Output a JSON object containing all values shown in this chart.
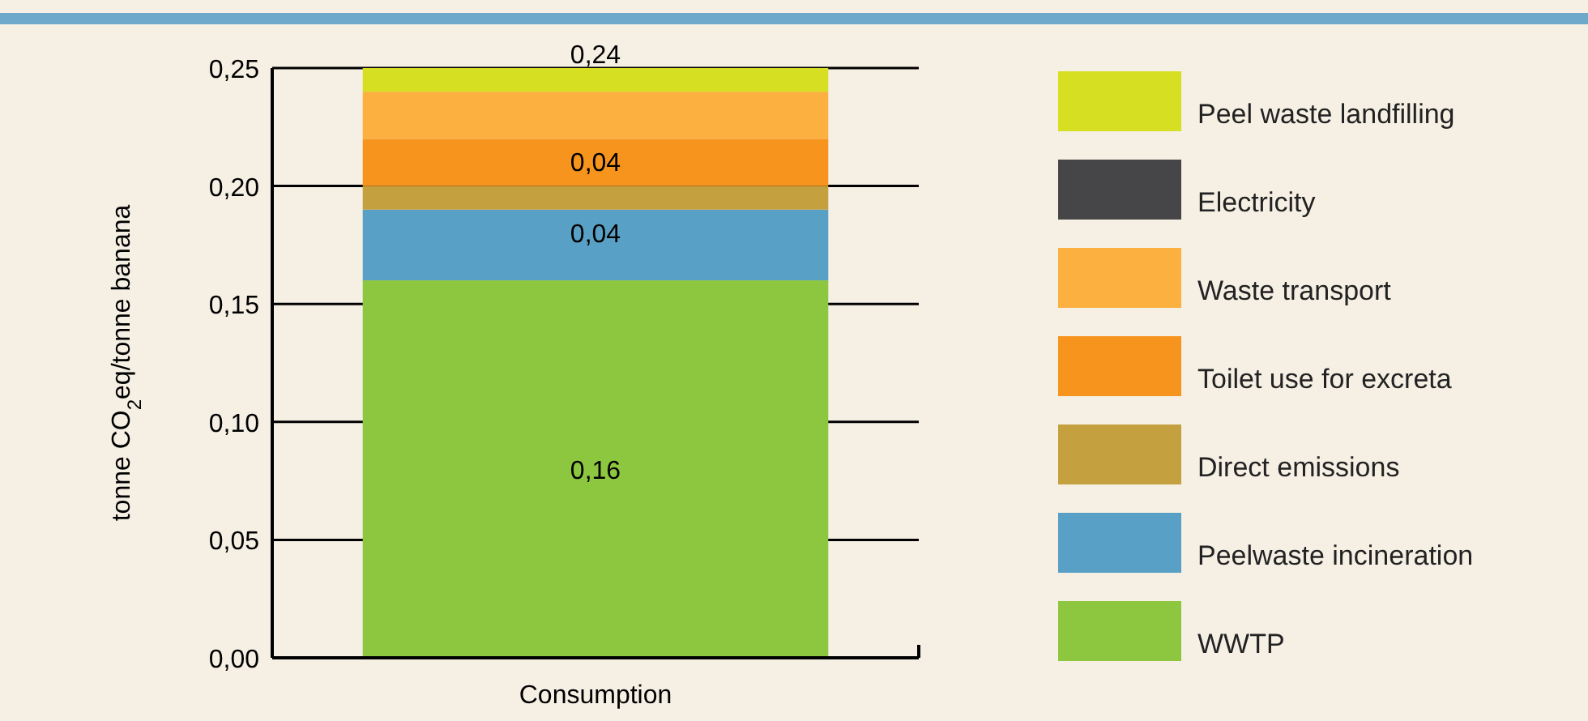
{
  "chart_data": {
    "type": "bar",
    "stacked": true,
    "ylabel": "tonne CO$_{2}$eq/tonne banana",
    "categories": [
      "Consumption"
    ],
    "ylim": [
      0,
      0.25
    ],
    "yticks": [
      {
        "value": 0,
        "label": "0,00"
      },
      {
        "value": 0.05,
        "label": "0,05"
      },
      {
        "value": 0.1,
        "label": "0,10"
      },
      {
        "value": 0.15,
        "label": "0,15"
      },
      {
        "value": 0.2,
        "label": "0,20"
      },
      {
        "value": 0.25,
        "label": "0,25"
      }
    ],
    "grid": "y",
    "legend": "right",
    "annotations": [
      {
        "text": "0,24",
        "x": "Consumption",
        "y": 0.25
      },
      {
        "text": "0,04",
        "x": "Consumption",
        "y": 0.22
      },
      {
        "text": "0,04",
        "x": "Consumption",
        "y": 0.19
      }
    ],
    "series": [
      {
        "name": "WWTP",
        "color": "#8dc63f",
        "values": [
          0.16
        ],
        "value_labels": [
          "0,16"
        ]
      },
      {
        "name": "Peelwaste incineration",
        "color": "#58a0c5",
        "values": [
          0.03
        ],
        "value_labels": [
          null
        ]
      },
      {
        "name": "Direct emissions",
        "color": "#c4a03e",
        "values": [
          0.01
        ],
        "value_labels": [
          null
        ]
      },
      {
        "name": "Toilet use for excreta",
        "color": "#f7941e",
        "values": [
          0.02
        ],
        "value_labels": [
          null
        ]
      },
      {
        "name": "Waste transport",
        "color": "#fbb040",
        "values": [
          0.02
        ],
        "value_labels": [
          null
        ]
      },
      {
        "name": "Electricity",
        "color": "#464648",
        "values": [
          0
        ],
        "value_labels": [
          null
        ]
      },
      {
        "name": "Peel waste landfilling",
        "color": "#d7df23",
        "values": [
          0.01
        ],
        "value_labels": [
          null
        ]
      }
    ]
  }
}
